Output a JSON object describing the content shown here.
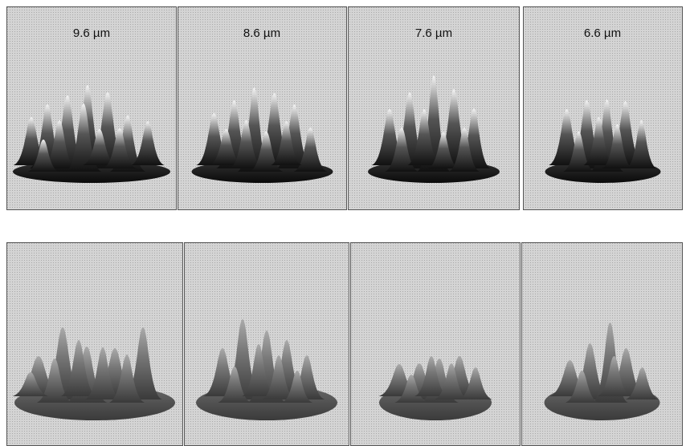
{
  "top_row": {
    "labels": [
      "9.6 µm",
      "8.6 µm",
      "7.6 µm",
      "6.6 µm"
    ]
  }
}
